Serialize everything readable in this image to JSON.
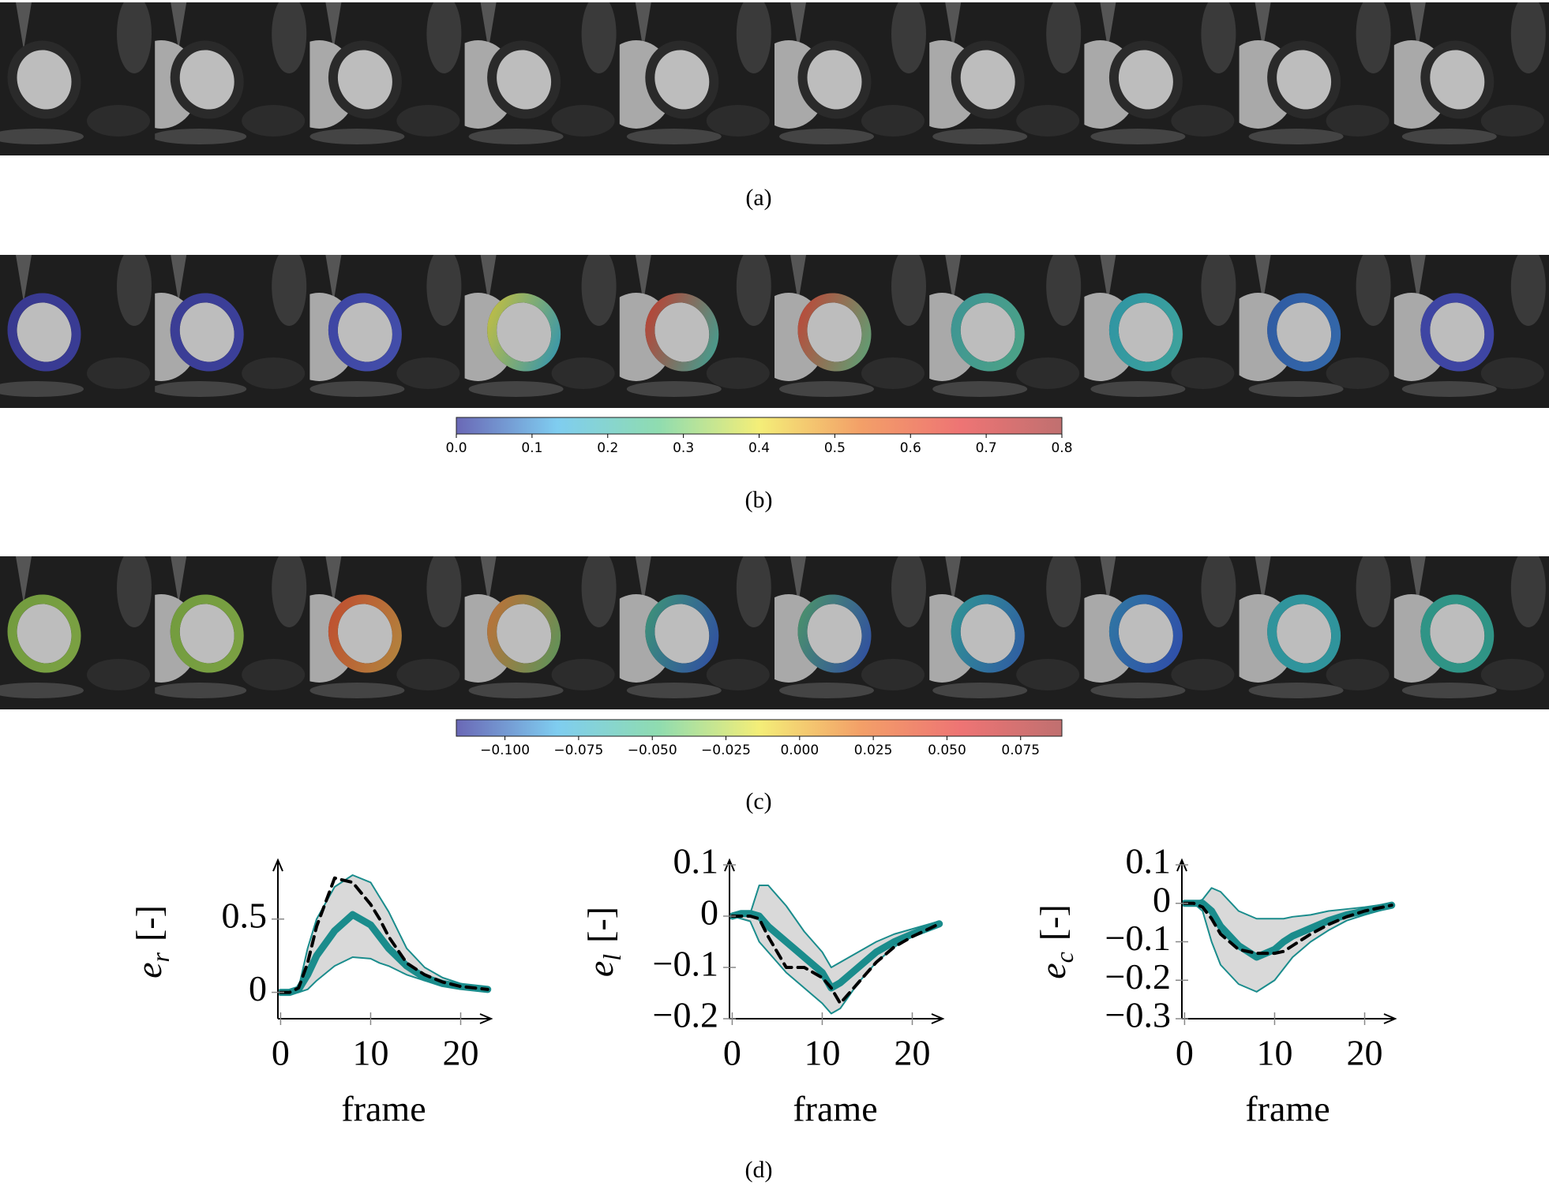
{
  "captions": [
    "(a)",
    "(b)",
    "(c)",
    "(d)"
  ],
  "colorbars": [
    {
      "lim": [
        0,
        0.8
      ],
      "ticks": [
        {
          "value": 0,
          "label": "0.0"
        },
        0.1,
        0.2,
        0.3,
        0.4,
        0.5,
        0.6,
        0.7,
        0.8
      ],
      "colormap": [
        "#6a68b6",
        "#7fcdf0",
        "#8fdcb0",
        "#f4ee78",
        "#f3a068",
        "#ee7474",
        "#c07070"
      ]
    },
    {
      "lim": [
        -0.1165,
        0.089
      ],
      "ticks": [
        {
          "value": -0.1,
          "label": "−0.100"
        },
        {
          "value": -0.075,
          "label": "−0.075"
        },
        {
          "value": -0.05,
          "label": "−0.050"
        },
        {
          "value": -0.025,
          "label": "−0.025"
        },
        {
          "value": 0,
          "label": "0.000"
        },
        {
          "value": 0.025,
          "label": "0.025"
        },
        {
          "value": 0.05,
          "label": "0.050"
        },
        {
          "value": 0.075,
          "label": "0.075"
        }
      ],
      "colormap": [
        "#6a68b6",
        "#7fcdf0",
        "#8fdcb0",
        "#f4ee78",
        "#f3a068",
        "#ee7474",
        "#c07070"
      ]
    }
  ],
  "chart_data": [
    {
      "type": "line",
      "ylabel": "e",
      "ylabel_sub": "r",
      "ylabel_unit": "[-]",
      "xlabel": "frame",
      "x": [
        0,
        1,
        2,
        3,
        4,
        6,
        8,
        10,
        11,
        12,
        14,
        16,
        18,
        20,
        23
      ],
      "xlim": [
        -0.3,
        23.2
      ],
      "xticks": [
        0,
        10,
        20
      ],
      "ylim": [
        -0.18,
        0.87
      ],
      "yticks": [
        0,
        0.5
      ],
      "band_color": "#d9d9d9",
      "upper": {
        "color": "#1a8c8c",
        "values": [
          0,
          0,
          0.03,
          0.3,
          0.5,
          0.72,
          0.8,
          0.75,
          0.65,
          0.55,
          0.3,
          0.17,
          0.1,
          0.06,
          0.02
        ]
      },
      "lower": {
        "color": "#1a8c8c",
        "values": [
          0,
          0,
          0,
          0.02,
          0.08,
          0.18,
          0.24,
          0.23,
          0.2,
          0.18,
          0.12,
          0.08,
          0.05,
          0.03,
          0.01
        ]
      },
      "mean": {
        "color": "#1a8c8c",
        "values": [
          0,
          0,
          0.02,
          0.12,
          0.25,
          0.42,
          0.53,
          0.46,
          0.38,
          0.3,
          0.18,
          0.1,
          0.06,
          0.04,
          0.02
        ]
      },
      "reference": {
        "color": "#000000",
        "values": [
          0,
          0,
          0.03,
          0.2,
          0.45,
          0.78,
          0.75,
          0.6,
          0.5,
          0.38,
          0.2,
          0.12,
          0.07,
          0.04,
          0.02
        ]
      }
    },
    {
      "type": "line",
      "ylabel": "e",
      "ylabel_sub": "l",
      "ylabel_unit": "[-]",
      "xlabel": "frame",
      "x": [
        0,
        1,
        2,
        3,
        4,
        6,
        8,
        10,
        11,
        12,
        14,
        16,
        18,
        20,
        23
      ],
      "xlim": [
        -0.3,
        23.2
      ],
      "xticks": [
        0,
        10,
        20
      ],
      "ylim": [
        -0.2,
        0.1
      ],
      "yticks": [
        0.1,
        0,
        {
          "value": -0.1,
          "label": "−0.1"
        },
        {
          "value": -0.2,
          "label": "−0.2"
        }
      ],
      "band_color": "#d9d9d9",
      "upper": {
        "color": "#1a8c8c",
        "values": [
          0,
          0.005,
          0.005,
          0.06,
          0.06,
          0.02,
          -0.03,
          -0.07,
          -0.1,
          -0.09,
          -0.07,
          -0.05,
          -0.035,
          -0.025,
          -0.01
        ]
      },
      "lower": {
        "color": "#1a8c8c",
        "values": [
          0,
          -0.005,
          -0.01,
          -0.05,
          -0.07,
          -0.11,
          -0.14,
          -0.17,
          -0.19,
          -0.18,
          -0.13,
          -0.09,
          -0.06,
          -0.04,
          -0.02
        ]
      },
      "mean": {
        "color": "#1a8c8c",
        "values": [
          0,
          0.005,
          0.005,
          0,
          -0.02,
          -0.05,
          -0.08,
          -0.11,
          -0.14,
          -0.13,
          -0.1,
          -0.07,
          -0.05,
          -0.035,
          -0.015
        ]
      },
      "reference": {
        "color": "#000000",
        "values": [
          0,
          0,
          0,
          -0.005,
          -0.04,
          -0.1,
          -0.1,
          -0.12,
          -0.14,
          -0.17,
          -0.13,
          -0.09,
          -0.06,
          -0.04,
          -0.015
        ]
      }
    },
    {
      "type": "line",
      "ylabel": "e",
      "ylabel_sub": "c",
      "ylabel_unit": "[-]",
      "xlabel": "frame",
      "x": [
        0,
        1,
        2,
        3,
        4,
        6,
        8,
        10,
        11,
        12,
        14,
        16,
        18,
        20,
        23
      ],
      "xlim": [
        -0.3,
        23.2
      ],
      "xticks": [
        0,
        10,
        20
      ],
      "ylim": [
        -0.3,
        0.1
      ],
      "yticks": [
        0.1,
        0,
        {
          "value": -0.1,
          "label": "−0.1"
        },
        {
          "value": -0.2,
          "label": "−0.2"
        },
        {
          "value": -0.3,
          "label": "−0.3"
        }
      ],
      "band_color": "#d9d9d9",
      "upper": {
        "color": "#1a8c8c",
        "values": [
          0,
          0,
          0.01,
          0.04,
          0.03,
          -0.02,
          -0.04,
          -0.04,
          -0.04,
          -0.035,
          -0.03,
          -0.02,
          -0.015,
          -0.01,
          0
        ]
      },
      "lower": {
        "color": "#1a8c8c",
        "values": [
          0,
          0,
          -0.02,
          -0.1,
          -0.16,
          -0.21,
          -0.23,
          -0.2,
          -0.17,
          -0.14,
          -0.1,
          -0.07,
          -0.045,
          -0.03,
          -0.01
        ]
      },
      "mean": {
        "color": "#1a8c8c",
        "values": [
          0,
          0,
          0,
          -0.02,
          -0.06,
          -0.11,
          -0.14,
          -0.12,
          -0.1,
          -0.085,
          -0.065,
          -0.045,
          -0.03,
          -0.02,
          -0.005
        ]
      },
      "reference": {
        "color": "#000000",
        "values": [
          0,
          0,
          -0.01,
          -0.04,
          -0.08,
          -0.12,
          -0.13,
          -0.13,
          -0.125,
          -0.11,
          -0.08,
          -0.055,
          -0.035,
          -0.02,
          -0.005
        ]
      }
    }
  ]
}
